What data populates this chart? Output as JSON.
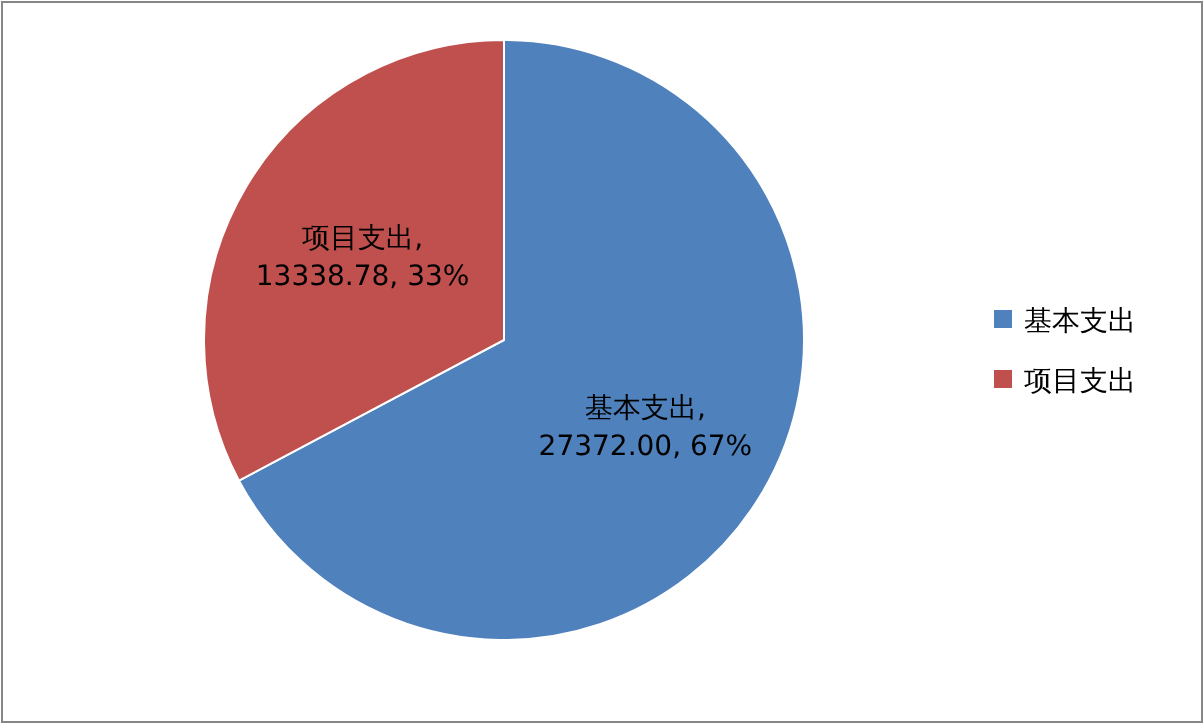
{
  "chart_data": {
    "type": "pie",
    "categories": [
      "基本支出",
      "项目支出"
    ],
    "values": [
      27372.0,
      13338.78
    ],
    "colors": [
      "#4f81bd",
      "#c0504d"
    ],
    "value_labels": [
      "基本支出,\n27372.00, 67%",
      "项目支出,\n13338.78, 33%"
    ],
    "legend": "right"
  }
}
